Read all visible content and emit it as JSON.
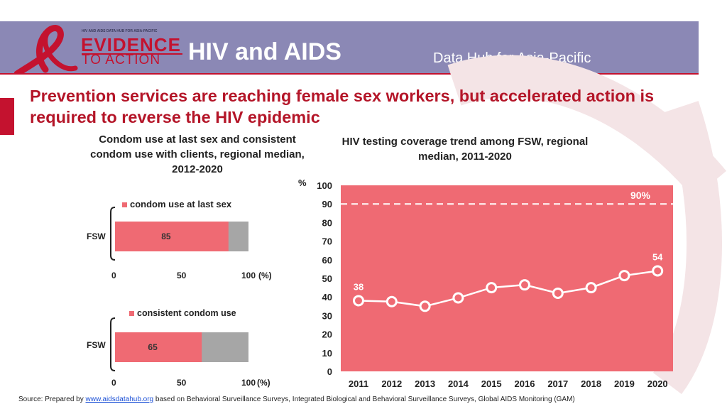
{
  "header": {
    "logo_small": "HIV AND AIDS DATA HUB FOR ASIA-PACIFIC",
    "logo_line1": "EVIDENCE",
    "logo_line2": "TO ACTION",
    "title": "HIV and AIDS",
    "subtitle": "Data Hub for Asia-Pacific"
  },
  "headline": "Prevention services are reaching female sex workers, but accelerated action is required to reverse the HIV epidemic",
  "colors": {
    "accent": "#c4122f",
    "bar": "#ef6a73",
    "bar_rest": "#a6a6a6",
    "panel": "#ef6a73",
    "banner": "#8b88b5"
  },
  "left_title": "Condom use at last sex and consistent condom use with clients, regional median, 2012-2020",
  "chart_data": [
    {
      "type": "bar",
      "orientation": "horizontal",
      "legend": "condom use at last sex",
      "categories": [
        "FSW"
      ],
      "values": [
        85
      ],
      "xlim": [
        0,
        100
      ],
      "ticks": [
        "0",
        "50",
        "100"
      ],
      "unit": "(%)"
    },
    {
      "type": "bar",
      "orientation": "horizontal",
      "legend": "consistent condom use",
      "categories": [
        "FSW"
      ],
      "values": [
        65
      ],
      "xlim": [
        0,
        100
      ],
      "ticks": [
        "0",
        "50",
        "100"
      ],
      "unit": "(%)"
    },
    {
      "type": "line",
      "title": "HIV testing coverage trend among FSW, regional median, 2011-2020",
      "ylabel": "%",
      "ylim": [
        0,
        100
      ],
      "yticks": [
        "0",
        "10",
        "20",
        "30",
        "40",
        "50",
        "60",
        "70",
        "80",
        "90",
        "100"
      ],
      "x": [
        "2011",
        "2012",
        "2013",
        "2014",
        "2015",
        "2016",
        "2017",
        "2018",
        "2019",
        "2020"
      ],
      "values": [
        38,
        37.5,
        35,
        39.5,
        45,
        46.5,
        42,
        45,
        51.5,
        54
      ],
      "labels": [
        {
          "index": 0,
          "text": "38"
        },
        {
          "index": 9,
          "text": "54"
        }
      ],
      "target": {
        "value": 90,
        "label": "90%"
      }
    }
  ],
  "source": {
    "prefix": "Source: Prepared by ",
    "link": "www.aidsdatahub.org",
    "suffix": " based on Behavioral Surveillance Surveys, Integrated Biological and Behavioral Surveillance Surveys, Global AIDS Monitoring (GAM)"
  }
}
